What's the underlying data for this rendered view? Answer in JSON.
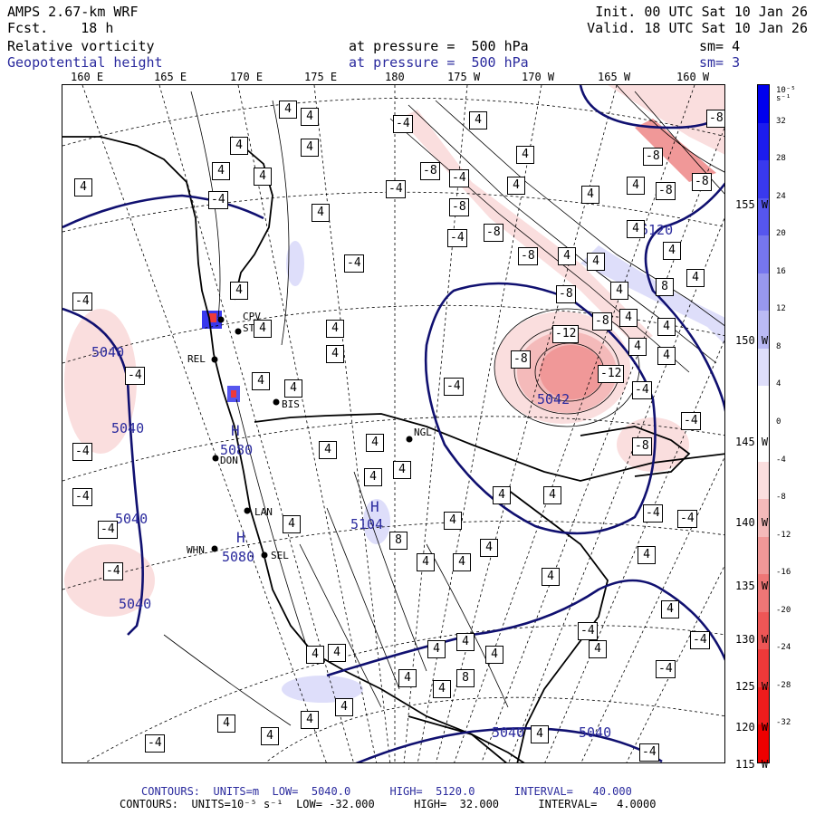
{
  "header": {
    "model": "AMPS 2.67-km WRF",
    "fcst_label": "Fcst.",
    "fcst_value": "18 h",
    "init": "Init. 00 UTC Sat 10 Jan 26",
    "valid": "Valid. 18 UTC Sat 10 Jan 26",
    "fields": [
      {
        "name": "Relative vorticity",
        "pressure_text": "at pressure =",
        "pressure_value": "500 hPa",
        "sm": "sm= 4",
        "color": "#000000"
      },
      {
        "name": "Geopotential height",
        "pressure_text": "at pressure =",
        "pressure_value": "500 hPa",
        "sm": "sm= 3",
        "color": "#2b2b9e"
      }
    ]
  },
  "top_longitudes": [
    "160 E",
    "165 E",
    "170 E",
    "175 E",
    "180",
    "175 W",
    "170 W",
    "165 W",
    "160 W"
  ],
  "right_latitudes": [
    "155 W",
    "150 W",
    "145 W",
    "140 W",
    "135 W",
    "130 W",
    "125 W",
    "120 W",
    "115 W"
  ],
  "colorbar": {
    "unit": "10⁻⁵ s⁻¹",
    "levels": [
      32,
      28,
      24,
      20,
      16,
      12,
      8,
      4,
      0,
      -4,
      -8,
      -12,
      -16,
      -20,
      -24,
      -28,
      -32
    ],
    "colors": [
      "#0000ee",
      "#1c1cee",
      "#3939ee",
      "#5656ee",
      "#7676ee",
      "#9898ee",
      "#babaf4",
      "#dedefa",
      "#ffffff",
      "#ffffff",
      "#fadede",
      "#f4baba",
      "#f09898",
      "#ee7676",
      "#ee5656",
      "#ee3939",
      "#ee1c1c",
      "#ee0000"
    ]
  },
  "stations": [
    {
      "code": "CPV"
    },
    {
      "code": "STE"
    },
    {
      "code": "REL"
    },
    {
      "code": "BIS"
    },
    {
      "code": "NGL"
    },
    {
      "code": "DON"
    },
    {
      "code": "LAN"
    },
    {
      "code": "WHN"
    },
    {
      "code": "SEL"
    }
  ],
  "height_labels": [
    "5040",
    "5040",
    "5040",
    "5040",
    "5080",
    "5080",
    "5042",
    "5104",
    "5120",
    "5040",
    "5040"
  ],
  "highs": [
    "H",
    "H",
    "H"
  ],
  "vort_labels": [
    "4",
    "-4",
    "8",
    "-8",
    "-12"
  ],
  "footer": {
    "line1": "CONTOURS:  UNITS=m  LOW=  5040.0      HIGH=  5120.0      INTERVAL=   40.000",
    "line2": "CONTOURS:  UNITS=10⁻⁵ s⁻¹  LOW= -32.000      HIGH=  32.000      INTERVAL=   4.0000"
  }
}
